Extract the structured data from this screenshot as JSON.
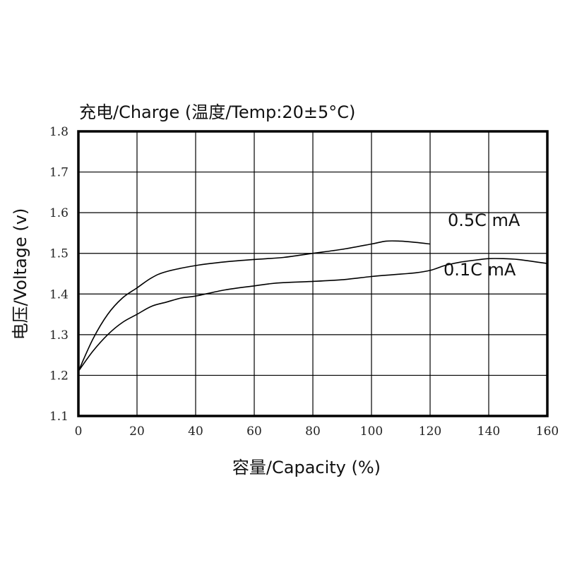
{
  "chart_data": {
    "type": "line",
    "title": "充电/Charge (温度/Temp:20±5°C)",
    "xlabel": "容量/Capacity (%)",
    "ylabel": "电压/Voltage (v)",
    "xlim": [
      0,
      160
    ],
    "ylim": [
      1.1,
      1.8
    ],
    "x_ticks": [
      0,
      20,
      40,
      60,
      80,
      100,
      120,
      140,
      160
    ],
    "y_ticks": [
      "1.1",
      "1.2",
      "1.3",
      "1.4",
      "1.5",
      "1.6",
      "1.7",
      "1.8"
    ],
    "grid": true,
    "series": [
      {
        "name": "0.5C mA",
        "x": [
          0,
          5,
          10,
          15,
          20,
          25,
          30,
          40,
          50,
          60,
          70,
          80,
          90,
          100,
          105,
          110,
          115,
          120
        ],
        "y": [
          1.21,
          1.29,
          1.35,
          1.39,
          1.415,
          1.44,
          1.455,
          1.47,
          1.479,
          1.485,
          1.49,
          1.5,
          1.51,
          1.523,
          1.53,
          1.53,
          1.527,
          1.523
        ]
      },
      {
        "name": "0.1C mA",
        "x": [
          0,
          5,
          10,
          15,
          20,
          25,
          30,
          35,
          40,
          50,
          60,
          65,
          70,
          80,
          90,
          100,
          110,
          115,
          120,
          125,
          130,
          135,
          140,
          145,
          150,
          155,
          160
        ],
        "y": [
          1.21,
          1.26,
          1.3,
          1.33,
          1.35,
          1.37,
          1.38,
          1.39,
          1.395,
          1.41,
          1.42,
          1.425,
          1.428,
          1.431,
          1.435,
          1.443,
          1.449,
          1.452,
          1.458,
          1.47,
          1.478,
          1.483,
          1.487,
          1.487,
          1.485,
          1.48,
          1.475
        ]
      }
    ]
  }
}
